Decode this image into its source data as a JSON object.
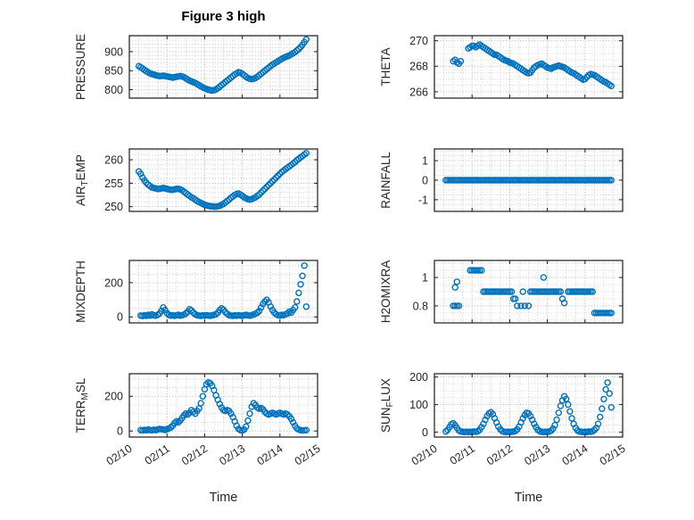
{
  "figure_title": "Figure 3 high",
  "time_axis": {
    "label": "Time",
    "xlim": [
      0,
      5
    ],
    "ticks": [
      0,
      1,
      2,
      3,
      4,
      5
    ],
    "tick_labels": [
      "02/10",
      "02/11",
      "02/12",
      "02/13",
      "02/14",
      "02/15"
    ],
    "minor_step": 0.25
  },
  "style": {
    "marker_color": "#0072BD",
    "minor_grid_color": "#c4c4c4",
    "major_grid_color": "#ababab",
    "axis_color": "#1a1a1a",
    "background": "#ffffff"
  },
  "chart_data": [
    {
      "type": "scatter",
      "name": "pressure",
      "ylabel": "PRESSURE",
      "ylabel_parts": [
        {
          "text": "PRESSURE",
          "sub": false
        }
      ],
      "yticks": [
        800,
        850,
        900
      ],
      "ylim": [
        778,
        942
      ],
      "yminor_step": 10,
      "segments": [
        {
          "x_start": 0.25,
          "x_step": 0.05,
          "y": [
            862,
            859,
            856,
            852,
            849,
            846,
            843,
            841,
            840,
            838,
            837,
            836,
            836,
            837,
            836,
            835,
            834,
            833,
            832,
            833,
            834,
            835,
            836,
            835,
            833,
            830,
            827,
            824,
            822,
            820,
            818,
            815,
            812,
            809,
            806,
            804,
            802,
            800,
            799,
            798,
            799,
            801,
            804,
            808,
            812,
            816,
            820,
            824,
            828,
            832,
            836,
            840,
            843,
            846,
            845,
            842,
            838,
            834,
            831,
            829,
            828,
            829,
            831,
            834,
            838,
            842,
            846,
            850,
            854,
            858,
            862,
            866,
            869,
            872,
            875,
            878,
            881,
            884,
            886,
            888,
            890,
            893,
            896,
            899,
            903,
            907,
            912,
            918,
            925,
            932
          ]
        }
      ]
    },
    {
      "type": "scatter",
      "name": "theta",
      "ylabel": "THETA",
      "ylabel_parts": [
        {
          "text": "THETA",
          "sub": false
        }
      ],
      "yticks": [
        266,
        268,
        270
      ],
      "ylim": [
        265.5,
        270.4
      ],
      "yminor_step": 0.5,
      "segments": [
        {
          "x_start": 0.5,
          "x_step": 0.05,
          "y": [
            268.4,
            268.5,
            268.3,
            268.2,
            268.4
          ]
        },
        {
          "x_start": 0.9,
          "x_step": 0.05,
          "y": [
            269.4,
            269.5,
            269.6,
            269.6,
            269.5,
            269.6,
            269.7,
            269.6,
            269.5,
            269.4,
            269.3,
            269.2,
            269.1,
            269.0,
            268.9,
            268.9,
            268.8,
            268.7,
            268.6,
            268.5,
            268.45,
            268.4,
            268.3,
            268.25,
            268.2,
            268.1,
            268.0,
            267.9,
            267.8,
            267.7,
            267.6,
            267.5,
            267.45,
            267.5,
            267.7,
            267.9,
            268.0,
            268.1,
            268.15,
            268.2,
            268.1,
            268.0,
            267.9,
            267.85,
            267.8,
            267.9,
            267.95,
            268.0,
            268.05,
            268.0,
            267.95,
            267.9,
            267.8,
            267.7,
            267.6,
            267.5,
            267.45,
            267.35,
            267.25,
            267.15,
            267.05,
            266.95,
            267.0,
            267.15,
            267.3,
            267.4,
            267.35,
            267.3,
            267.2,
            267.1,
            267.0,
            266.9,
            266.8,
            266.75,
            266.65,
            266.55,
            266.45
          ]
        }
      ]
    },
    {
      "type": "scatter",
      "name": "air-temp",
      "ylabel": "AIR_TEMP",
      "ylabel_parts": [
        {
          "text": "AIR",
          "sub": false
        },
        {
          "text": "T",
          "sub": true
        },
        {
          "text": "EMP",
          "sub": false
        }
      ],
      "yticks": [
        250,
        255,
        260
      ],
      "ylim": [
        249,
        262.3
      ],
      "yminor_step": 1,
      "segments": [
        {
          "x_start": 0.25,
          "x_step": 0.05,
          "y": [
            257.5,
            257.0,
            256.2,
            255.6,
            255.1,
            254.7,
            254.4,
            254.1,
            254.0,
            253.9,
            253.8,
            253.8,
            253.9,
            254.0,
            253.9,
            253.8,
            253.7,
            253.6,
            253.6,
            253.7,
            253.8,
            253.8,
            253.7,
            253.5,
            253.2,
            252.9,
            252.6,
            252.3,
            252.0,
            251.8,
            251.5,
            251.2,
            251.0,
            250.8,
            250.6,
            250.4,
            250.3,
            250.2,
            250.1,
            250.1,
            250.0,
            250.0,
            250.1,
            250.2,
            250.4,
            250.6,
            250.9,
            251.2,
            251.5,
            251.9,
            252.2,
            252.5,
            252.7,
            252.8,
            252.6,
            252.3,
            252.0,
            251.8,
            251.6,
            251.5,
            251.6,
            251.8,
            252.0,
            252.3,
            252.6,
            253.0,
            253.4,
            253.8,
            254.2,
            254.6,
            255.0,
            255.4,
            255.8,
            256.2,
            256.6,
            257.0,
            257.4,
            257.7,
            258.0,
            258.3,
            258.6,
            258.9,
            259.2,
            259.5,
            259.9,
            260.2,
            260.5,
            260.8,
            261.1,
            261.4
          ]
        }
      ]
    },
    {
      "type": "scatter",
      "name": "rainfall",
      "ylabel": "RAINFALL",
      "ylabel_parts": [
        {
          "text": "RAINFALL",
          "sub": false
        }
      ],
      "yticks": [
        -1,
        0,
        1
      ],
      "ylim": [
        -1.6,
        1.6
      ],
      "yminor_step": 0.25,
      "segments": [
        {
          "x_start": 0.3,
          "x_step": 0.05,
          "y": [
            0,
            0,
            0,
            0,
            0,
            0,
            0,
            0,
            0,
            0,
            0,
            0,
            0,
            0,
            0,
            0,
            0,
            0,
            0,
            0,
            0,
            0,
            0,
            0,
            0,
            0,
            0,
            0,
            0,
            0,
            0,
            0,
            0,
            0,
            0,
            0,
            0,
            0,
            0,
            0,
            0,
            0,
            0,
            0,
            0,
            0,
            0,
            0,
            0,
            0,
            0,
            0,
            0,
            0,
            0,
            0,
            0,
            0,
            0,
            0,
            0,
            0,
            0,
            0,
            0,
            0,
            0,
            0,
            0,
            0,
            0,
            0,
            0,
            0,
            0,
            0,
            0,
            0,
            0,
            0,
            0,
            0,
            0,
            0,
            0,
            0,
            0,
            0,
            0
          ]
        }
      ]
    },
    {
      "type": "scatter",
      "name": "mixdepth",
      "ylabel": "MIXDEPTH",
      "ylabel_parts": [
        {
          "text": "MIXDEPTH",
          "sub": false
        }
      ],
      "yticks": [
        0,
        200
      ],
      "ylim": [
        -35,
        330
      ],
      "yminor_step": 50,
      "segments": [
        {
          "x_start": 0.3,
          "x_step": 0.05,
          "y": [
            8,
            5,
            10,
            6,
            12,
            8,
            15,
            10,
            7,
            12,
            20,
            35,
            55,
            40,
            22,
            12,
            8,
            10,
            6,
            9,
            12,
            8,
            10,
            14,
            20,
            30,
            45,
            38,
            25,
            15,
            10,
            8,
            6,
            9,
            7,
            10,
            8,
            6,
            10,
            12,
            15,
            25,
            40,
            50,
            42,
            28,
            18,
            10,
            8,
            6,
            9,
            7,
            10,
            8,
            6,
            10,
            12,
            9,
            7,
            10,
            14,
            18,
            25,
            35,
            55,
            75,
            90,
            100,
            85,
            60,
            40,
            25,
            15,
            10,
            8,
            12,
            10,
            15,
            20,
            30,
            25,
            40,
            55,
            90,
            140,
            190,
            240,
            300,
            60
          ]
        }
      ]
    },
    {
      "type": "scatter",
      "name": "h2omixra",
      "ylabel": "H2OMIXRA",
      "ylabel_parts": [
        {
          "text": "H2OMIXRA",
          "sub": false
        }
      ],
      "yticks": [
        0.8,
        1
      ],
      "ylim": [
        0.68,
        1.12
      ],
      "yminor_step": 0.05,
      "segments": [
        {
          "x_start": 0.5,
          "x_step": 0.05,
          "y": [
            0.8,
            0.8,
            0.8,
            0.8
          ]
        },
        {
          "x_start": 0.55,
          "x_step": 0.05,
          "y": [
            0.93,
            0.97
          ]
        },
        {
          "x_start": 0.95,
          "x_step": 0.05,
          "y": [
            1.05,
            1.05,
            1.05,
            1.05,
            1.05,
            1.05,
            1.05
          ]
        },
        {
          "x_start": 1.3,
          "x_step": 0.05,
          "y": [
            0.9,
            0.9,
            0.9,
            0.9,
            0.9,
            0.9,
            0.9,
            0.9,
            0.9,
            0.9,
            0.9,
            0.9,
            0.9,
            0.9,
            0.9,
            0.9
          ]
        },
        {
          "x_start": 2.1,
          "x_step": 0.05,
          "y": [
            0.85,
            0.85
          ]
        },
        {
          "x_start": 2.2,
          "x_step": 0.1,
          "y": [
            0.8,
            0.8,
            0.8,
            0.8
          ]
        },
        {
          "x_start": 2.35,
          "x_step": 0.05,
          "y": [
            0.9
          ]
        },
        {
          "x_start": 2.55,
          "x_step": 0.05,
          "y": [
            0.9,
            0.9,
            0.9,
            0.9,
            0.9,
            0.9,
            0.9,
            0.9,
            0.9,
            0.9,
            0.9,
            0.9,
            0.9,
            0.9,
            0.9,
            0.9,
            0.9
          ]
        },
        {
          "x_start": 2.9,
          "x_step": 0.05,
          "y": [
            1.0
          ]
        },
        {
          "x_start": 3.4,
          "x_step": 0.05,
          "y": [
            0.85,
            0.82
          ]
        },
        {
          "x_start": 3.55,
          "x_step": 0.05,
          "y": [
            0.9,
            0.9,
            0.9,
            0.9,
            0.9,
            0.9,
            0.9,
            0.9,
            0.9,
            0.9,
            0.9,
            0.9,
            0.9,
            0.9
          ]
        },
        {
          "x_start": 4.25,
          "x_step": 0.05,
          "y": [
            0.75,
            0.75,
            0.75,
            0.75,
            0.75,
            0.75,
            0.75,
            0.75,
            0.75,
            0.75
          ]
        }
      ]
    },
    {
      "type": "scatter",
      "name": "terr-msl",
      "ylabel": "TERR_MSL",
      "ylabel_parts": [
        {
          "text": "TERR",
          "sub": false
        },
        {
          "text": "M",
          "sub": true
        },
        {
          "text": "SL",
          "sub": false
        }
      ],
      "yticks": [
        0,
        200
      ],
      "ylim": [
        -35,
        330
      ],
      "yminor_step": 50,
      "segments": [
        {
          "x_start": 0.3,
          "x_step": 0.05,
          "y": [
            5,
            3,
            6,
            4,
            8,
            5,
            4,
            7,
            5,
            8,
            12,
            10,
            8,
            6,
            10,
            15,
            20,
            30,
            45,
            55,
            50,
            60,
            75,
            90,
            100,
            95,
            105,
            120,
            110,
            100,
            115,
            130,
            160,
            200,
            240,
            270,
            280,
            275,
            260,
            235,
            205,
            180,
            155,
            135,
            120,
            115,
            120,
            115,
            100,
            80,
            55,
            30,
            12,
            5,
            3,
            8,
            25,
            60,
            100,
            140,
            160,
            150,
            135,
            128,
            132,
            125,
            110,
            100,
            95,
            100,
            105,
            100,
            95,
            100,
            105,
            100,
            95,
            100,
            95,
            85,
            70,
            50,
            30,
            15,
            8,
            5,
            3,
            4,
            5
          ]
        }
      ]
    },
    {
      "type": "scatter",
      "name": "sun-flux",
      "ylabel": "SUN_FLUX",
      "ylabel_parts": [
        {
          "text": "SUN",
          "sub": false
        },
        {
          "text": "F",
          "sub": true
        },
        {
          "text": "LUX",
          "sub": false
        }
      ],
      "yticks": [
        0,
        100,
        200
      ],
      "ylim": [
        -18,
        212
      ],
      "yminor_step": 25,
      "segments": [
        {
          "x_start": 0.3,
          "x_step": 0.05,
          "y": [
            2,
            8,
            18,
            28,
            32,
            25,
            15,
            6,
            2,
            1,
            0,
            1,
            0,
            1,
            0,
            2,
            1,
            3,
            8,
            18,
            30,
            45,
            58,
            68,
            72,
            65,
            50,
            35,
            20,
            10,
            4,
            1,
            0,
            1,
            0,
            1,
            2,
            4,
            10,
            20,
            35,
            50,
            62,
            70,
            68,
            58,
            45,
            30,
            18,
            8,
            3,
            1,
            0,
            1,
            0,
            2,
            5,
            12,
            25,
            45,
            70,
            95,
            115,
            130,
            120,
            100,
            75,
            50,
            30,
            15,
            6,
            2,
            1,
            0,
            1,
            0,
            2,
            1,
            3,
            8,
            15,
            30,
            55,
            85,
            120,
            155,
            180,
            140,
            90
          ]
        }
      ]
    }
  ]
}
